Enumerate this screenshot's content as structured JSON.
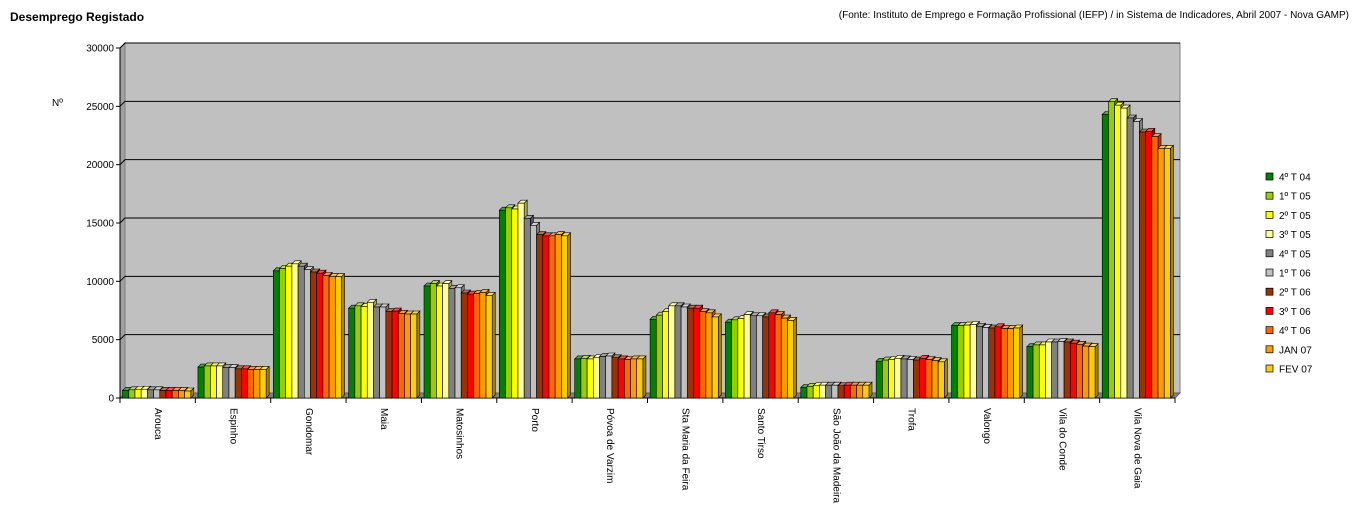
{
  "chart_data": {
    "type": "bar",
    "title": "Desemprego Registado",
    "source": "(Fonte: Instituto de Emprego e Formação Profissional (IEFP) / in Sistema de Indicadores, Abril 2007 - Nova GAMP)",
    "ylabel": "Nº",
    "xlabel": "",
    "ylim": [
      0,
      30000
    ],
    "yticks": [
      0,
      5000,
      10000,
      15000,
      20000,
      25000,
      30000
    ],
    "grid": true,
    "legend_position": "right",
    "plot_background": "#c0c0c0",
    "categories": [
      "Arouca",
      "Espinho",
      "Gondomar",
      "Maia",
      "Matosinhos",
      "Porto",
      "Póvoa de Varzim",
      "Sta Maria da Feira",
      "Santo Tirso",
      "São João da Madeira",
      "Trofa",
      "Valongo",
      "Vila do Conde",
      "Vila Nova de Gaia"
    ],
    "series": [
      {
        "name": "4º T 04",
        "color": "#008000",
        "values": [
          650,
          2650,
          10900,
          7700,
          9600,
          16100,
          3350,
          6750,
          6500,
          900,
          3150,
          6200,
          4400,
          24300
        ]
      },
      {
        "name": "1º T 05",
        "color": "#99cc00",
        "values": [
          700,
          2750,
          11100,
          7900,
          9800,
          16300,
          3400,
          7100,
          6700,
          1000,
          3250,
          6200,
          4550,
          25400
        ]
      },
      {
        "name": "2º T 05",
        "color": "#ffff00",
        "values": [
          750,
          2750,
          11300,
          7850,
          9600,
          16200,
          3350,
          7400,
          6800,
          1050,
          3300,
          6250,
          4550,
          25100
        ]
      },
      {
        "name": "3º T 05",
        "color": "#ffff99",
        "values": [
          750,
          2750,
          11500,
          8200,
          9800,
          16700,
          3450,
          7900,
          7150,
          1100,
          3400,
          6300,
          4800,
          24850
        ]
      },
      {
        "name": "4º T 05",
        "color": "#808080",
        "values": [
          700,
          2600,
          11300,
          7800,
          9400,
          15400,
          3550,
          7900,
          7050,
          1100,
          3350,
          6150,
          4800,
          24000
        ]
      },
      {
        "name": "1º T 06",
        "color": "#c0c0c0",
        "values": [
          700,
          2600,
          11000,
          7800,
          9450,
          14800,
          3600,
          7800,
          7050,
          1100,
          3300,
          6050,
          4850,
          23700
        ]
      },
      {
        "name": "2º T 06",
        "color": "#993300",
        "values": [
          650,
          2500,
          10800,
          7400,
          9000,
          14000,
          3450,
          7700,
          6950,
          1050,
          3250,
          6000,
          4800,
          22800
        ]
      },
      {
        "name": "3º T 06",
        "color": "#ff0000",
        "values": [
          650,
          2500,
          10700,
          7450,
          8900,
          13900,
          3350,
          7700,
          7300,
          1100,
          3400,
          6100,
          4700,
          22850
        ]
      },
      {
        "name": "4º T 06",
        "color": "#ff6600",
        "values": [
          650,
          2450,
          10500,
          7250,
          8950,
          13900,
          3300,
          7400,
          7150,
          1100,
          3300,
          5950,
          4600,
          22400
        ]
      },
      {
        "name": "JAN 07",
        "color": "#ff9900",
        "values": [
          650,
          2450,
          10400,
          7200,
          9050,
          14000,
          3350,
          7300,
          6850,
          1100,
          3200,
          5950,
          4450,
          21400
        ]
      },
      {
        "name": "FEV 07",
        "color": "#ffcc00",
        "values": [
          600,
          2450,
          10400,
          7200,
          8800,
          13900,
          3350,
          6950,
          6650,
          1100,
          3100,
          6000,
          4400,
          21400
        ]
      }
    ]
  }
}
